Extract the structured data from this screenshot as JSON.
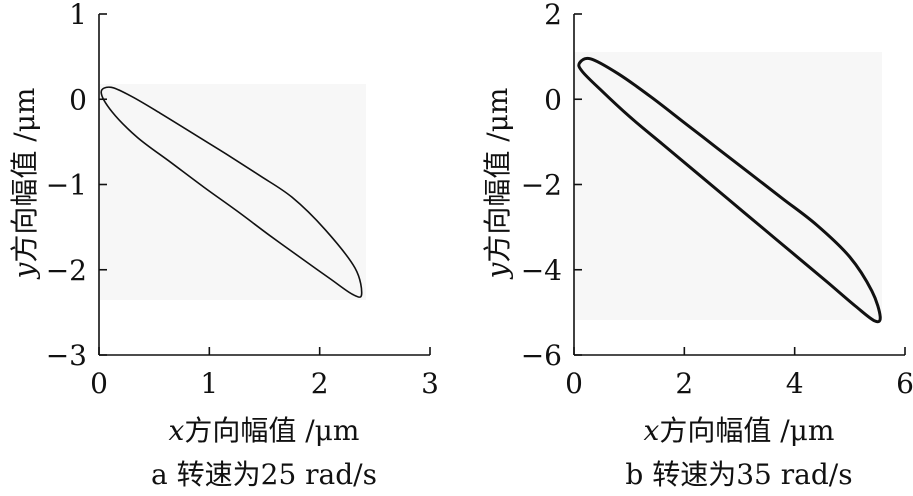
{
  "chart_data": [
    {
      "type": "line",
      "subtitle": "a  转速为25 rad/s",
      "xlabel_var": "x",
      "xlabel_text": "方向幅值 /μm",
      "ylabel_var": "y",
      "ylabel_text": "方向幅值 /μm",
      "xlim": [
        0,
        3
      ],
      "ylim": [
        -3,
        1
      ],
      "xticks": [
        0,
        1,
        2,
        3
      ],
      "xtick_labels": [
        "0",
        "1",
        "2",
        "3"
      ],
      "yticks": [
        1,
        0,
        -1,
        -2,
        -3
      ],
      "ytick_labels": [
        "1",
        "0",
        "−1",
        "−2",
        "−3"
      ],
      "grid": false,
      "series": [
        {
          "shape": "ellipse-orbit",
          "x": [
            0.02,
            0.11,
            0.3,
            0.55,
            0.85,
            1.15,
            1.45,
            1.75,
            2.05,
            2.32,
            2.38,
            2.3,
            2.1,
            1.85,
            1.55,
            1.25,
            0.95,
            0.65,
            0.35,
            0.12,
            0.02
          ],
          "y": [
            0.08,
            0.14,
            0.03,
            -0.16,
            -0.4,
            -0.64,
            -0.89,
            -1.15,
            -1.53,
            -1.98,
            -2.29,
            -2.29,
            -2.11,
            -1.88,
            -1.6,
            -1.31,
            -1.03,
            -0.74,
            -0.45,
            -0.15,
            0.08
          ],
          "color": "#111111"
        }
      ]
    },
    {
      "type": "line",
      "subtitle": "b  转速为35 rad/s",
      "xlabel_var": "x",
      "xlabel_text": "方向幅值 /μm",
      "ylabel_var": "y",
      "ylabel_text": "方向幅值 /μm",
      "xlim": [
        0,
        6
      ],
      "ylim": [
        -6,
        2
      ],
      "xticks": [
        0,
        2,
        4,
        6
      ],
      "xtick_labels": [
        "0",
        "2",
        "4",
        "6"
      ],
      "yticks": [
        2,
        0,
        -2,
        -4,
        -6
      ],
      "ytick_labels": [
        "2",
        "0",
        "−2",
        "−4",
        "−6"
      ],
      "grid": false,
      "series": [
        {
          "shape": "ellipse-orbit",
          "x": [
            0.1,
            0.3,
            0.8,
            1.4,
            2.0,
            2.6,
            3.2,
            3.8,
            4.4,
            5.0,
            5.4,
            5.55,
            5.45,
            5.1,
            4.6,
            4.0,
            3.4,
            2.8,
            2.2,
            1.6,
            1.0,
            0.5,
            0.15,
            0.1
          ],
          "y": [
            0.85,
            0.95,
            0.6,
            0.05,
            -0.55,
            -1.15,
            -1.75,
            -2.35,
            -2.95,
            -3.7,
            -4.5,
            -5.1,
            -5.2,
            -4.85,
            -4.3,
            -3.65,
            -3.0,
            -2.35,
            -1.7,
            -1.05,
            -0.4,
            0.2,
            0.65,
            0.85
          ],
          "color": "#111111"
        }
      ]
    }
  ]
}
